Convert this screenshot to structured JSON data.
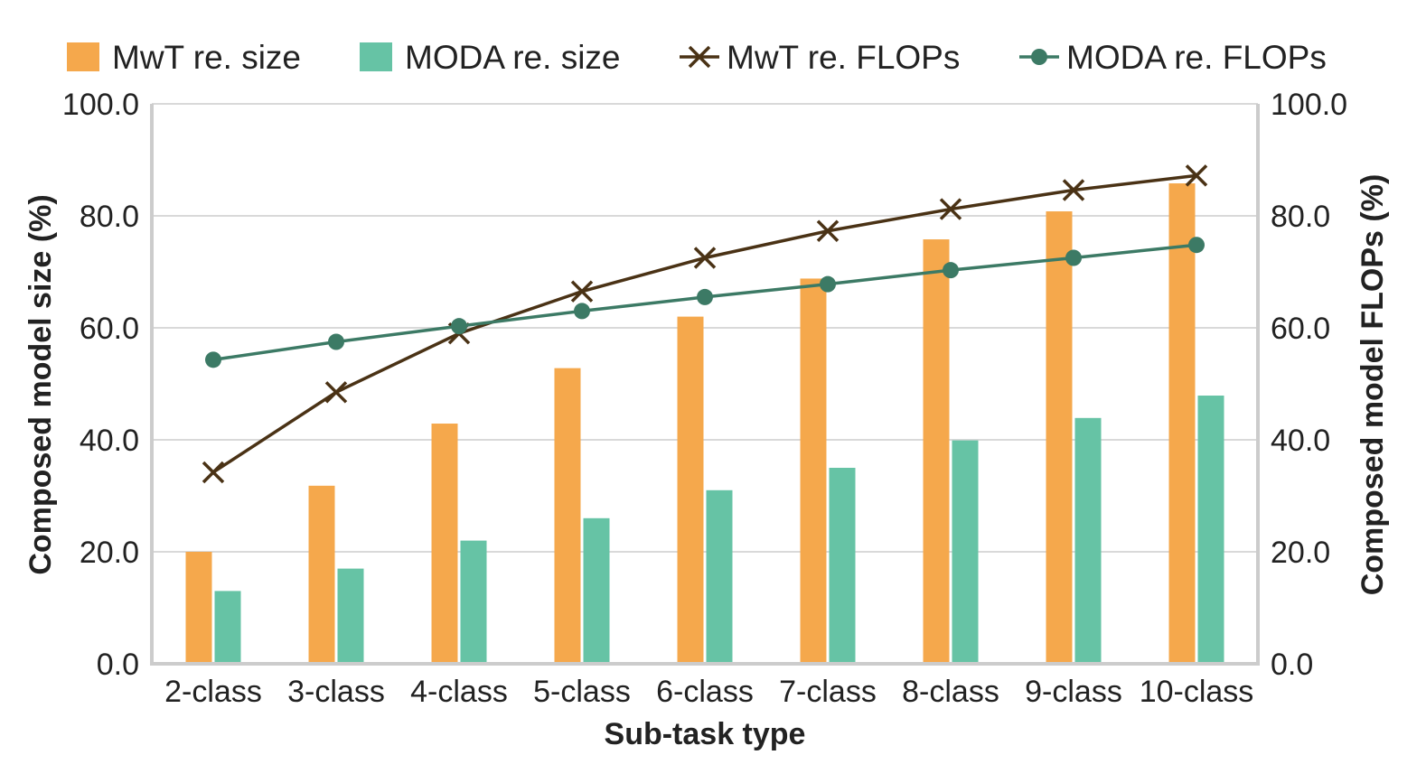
{
  "chart_data": {
    "type": "bar",
    "categories": [
      "2-class",
      "3-class",
      "4-class",
      "5-class",
      "6-class",
      "7-class",
      "8-class",
      "9-class",
      "10-class"
    ],
    "bar_series": [
      {
        "name": "MwT re. size",
        "color": "#f5a84c",
        "axis": "left",
        "values": [
          20.0,
          31.8,
          42.9,
          52.8,
          62.0,
          68.8,
          75.8,
          80.8,
          85.8
        ]
      },
      {
        "name": "MODA re. size",
        "color": "#66c3a5",
        "axis": "left",
        "values": [
          13.0,
          17.0,
          22.0,
          26.0,
          31.0,
          35.0,
          39.9,
          43.9,
          47.9
        ]
      }
    ],
    "line_series": [
      {
        "name": "MwT re. FLOPs",
        "color": "#4a3215",
        "marker": "x",
        "axis": "right",
        "values": [
          34.2,
          48.5,
          59.0,
          66.5,
          72.5,
          77.3,
          81.2,
          84.6,
          87.2
        ]
      },
      {
        "name": "MODA re. FLOPs",
        "color": "#3c7a65",
        "marker": "circle",
        "axis": "right",
        "values": [
          54.3,
          57.5,
          60.3,
          63.0,
          65.5,
          67.8,
          70.3,
          72.5,
          74.8
        ]
      }
    ],
    "xlabel": "Sub-task type",
    "ylabel": "Composed model size (%)",
    "y2label": "Composed model FLOPs (%)",
    "ylim": [
      0,
      100
    ],
    "y2lim": [
      0,
      100
    ],
    "yticks": [
      "0.0",
      "20.0",
      "40.0",
      "60.0",
      "80.0",
      "100.0"
    ],
    "y2ticks": [
      "0.0",
      "20.0",
      "40.0",
      "60.0",
      "80.0",
      "100.0"
    ],
    "grid": "horizontal",
    "legend_position": "top"
  }
}
